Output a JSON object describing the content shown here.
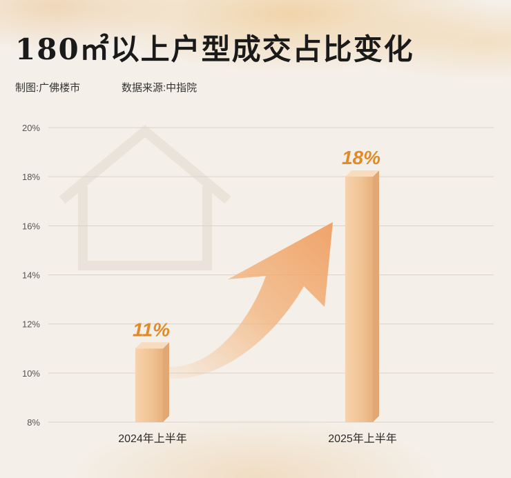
{
  "header": {
    "title": "180㎡以上户型成交占比变化",
    "credit": "制图:广佛楼市",
    "source": "数据来源:中指院"
  },
  "colors": {
    "bar_front": "#f2c79b",
    "bar_side": "#e2a874",
    "bar_top": "#f8dcbd",
    "label": "#e08a2a",
    "arrow": "#f0a86a"
  },
  "chart_data": {
    "type": "bar",
    "title": "180㎡以上户型成交占比变化",
    "xlabel": "",
    "ylabel": "",
    "categories": [
      "2024年上半年",
      "2025年上半年"
    ],
    "values": [
      11,
      18
    ],
    "data_labels": [
      "11%",
      "18%"
    ],
    "ylim": [
      8,
      20
    ],
    "yticks": [
      "8%",
      "10%",
      "12%",
      "14%",
      "16%",
      "18%",
      "20%"
    ],
    "grid": true,
    "legend": "none"
  }
}
